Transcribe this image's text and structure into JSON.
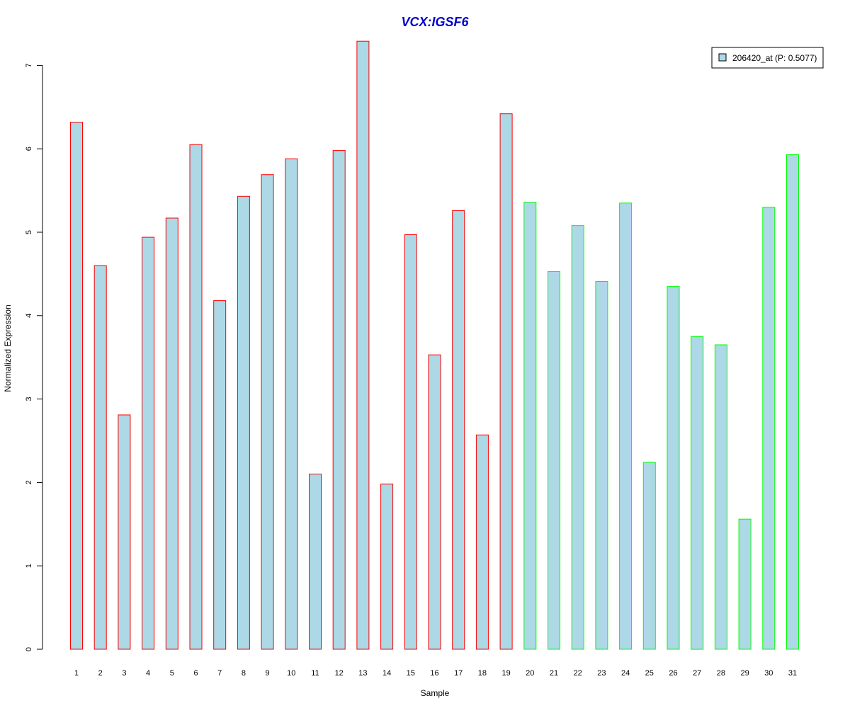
{
  "chart_data": {
    "type": "bar",
    "title": "VCX:IGSF6",
    "xlabel": "Sample",
    "ylabel": "Normalized Expression",
    "ylim": [
      0,
      7.3
    ],
    "yticks": [
      0,
      1,
      2,
      3,
      4,
      5,
      6,
      7
    ],
    "grid": false,
    "legend_position": "top-right",
    "categories": [
      "1",
      "2",
      "3",
      "4",
      "5",
      "6",
      "7",
      "8",
      "9",
      "10",
      "11",
      "12",
      "13",
      "14",
      "15",
      "16",
      "17",
      "18",
      "19",
      "20",
      "21",
      "22",
      "23",
      "24",
      "25",
      "26",
      "27",
      "28",
      "29",
      "30",
      "31"
    ],
    "series": [
      {
        "name": "206420_at (P: 0.5077)",
        "values": [
          6.32,
          4.6,
          2.81,
          4.94,
          5.17,
          6.05,
          4.18,
          5.43,
          5.69,
          5.88,
          2.1,
          5.98,
          7.29,
          1.98,
          4.97,
          3.53,
          5.26,
          2.57,
          6.42,
          5.36,
          4.53,
          5.08,
          4.41,
          5.35,
          2.24,
          4.35,
          3.75,
          3.65,
          1.56,
          5.3,
          5.93
        ],
        "fill_color": "#add8e6",
        "border_colors": [
          "#ff0000",
          "#ff0000",
          "#ff0000",
          "#ff0000",
          "#ff0000",
          "#ff0000",
          "#ff0000",
          "#ff0000",
          "#ff0000",
          "#ff0000",
          "#ff0000",
          "#ff0000",
          "#ff0000",
          "#ff0000",
          "#ff0000",
          "#ff0000",
          "#ff0000",
          "#ff0000",
          "#ff0000",
          "#00ff00",
          "#00ff00",
          "#00ff00",
          "#00ff00",
          "#00ff00",
          "#00ff00",
          "#00ff00",
          "#00ff00",
          "#00ff00",
          "#00ff00",
          "#00ff00",
          "#00ff00"
        ]
      }
    ],
    "colors": {
      "title": "#0000cc",
      "legend_border": "#000000"
    }
  }
}
